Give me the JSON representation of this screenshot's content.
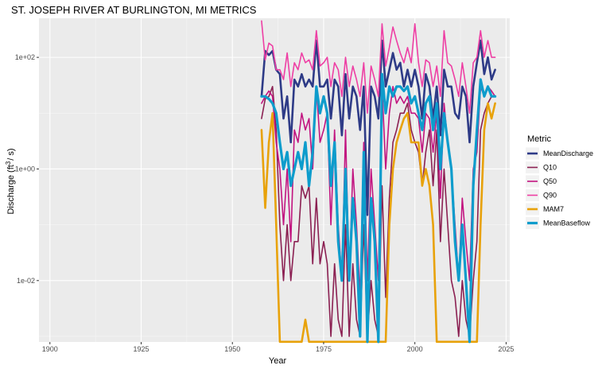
{
  "chart_data": {
    "type": "line",
    "title": "ST. JOSEPH RIVER AT BURLINGTON, MI  METRICS",
    "xlabel": "Year",
    "ylabel_main": "Discharge (ft",
    "ylabel_sup": "3",
    "ylabel_tail": "/ s)",
    "y_scale": "log10",
    "xlim": [
      1897,
      2026
    ],
    "ylim_log10": [
      -3.1,
      2.7
    ],
    "x_ticks": [
      1900,
      1925,
      1950,
      1975,
      2000,
      2025
    ],
    "x_tick_labels": [
      "1900",
      "1925",
      "1950",
      "1975",
      "2000",
      "2025"
    ],
    "y_ticks_log10": [
      2,
      0,
      -2
    ],
    "y_tick_labels": [
      "1e+02",
      "1e+00",
      "1e-02"
    ],
    "grid": true,
    "panel_background": "#ebebeb",
    "legend_position": "right",
    "legend_title": "Metric",
    "series": [
      {
        "name": "MeanDischarge",
        "color": "#2e3b87",
        "width": 2.6,
        "x": [
          1958,
          1959,
          1960,
          1961,
          1962,
          1963,
          1964,
          1965,
          1966,
          1967,
          1968,
          1969,
          1970,
          1971,
          1972,
          1973,
          1974,
          1975,
          1976,
          1977,
          1978,
          1979,
          1980,
          1981,
          1982,
          1983,
          1984,
          1985,
          1986,
          1987,
          1988,
          1989,
          1990,
          1991,
          1992,
          1993,
          1994,
          1995,
          1996,
          1997,
          1998,
          1999,
          2000,
          2001,
          2002,
          2003,
          2004,
          2005,
          2006,
          2007,
          2008,
          2009,
          2010,
          2011,
          2012,
          2013,
          2014,
          2015,
          2016,
          2017,
          2018,
          2019,
          2020,
          2021,
          2022
        ],
        "y": [
          20,
          130,
          110,
          130,
          60,
          50,
          8,
          20,
          3,
          40,
          30,
          50,
          30,
          40,
          30,
          200,
          30,
          30,
          40,
          8,
          40,
          30,
          4,
          50,
          8,
          30,
          20,
          5,
          30,
          0.15,
          30,
          20,
          8,
          200,
          30,
          60,
          120,
          60,
          80,
          30,
          60,
          30,
          60,
          30,
          8,
          50,
          30,
          8,
          30,
          4,
          60,
          30,
          30,
          10,
          8,
          30,
          20,
          3,
          30,
          80,
          200,
          50,
          100,
          40,
          60
        ]
      },
      {
        "name": "Q10",
        "color": "#8b2052",
        "width": 1.6,
        "x": [
          1958,
          1959,
          1960,
          1961,
          1962,
          1963,
          1964,
          1965,
          1966,
          1967,
          1968,
          1969,
          1970,
          1971,
          1972,
          1973,
          1974,
          1975,
          1976,
          1977,
          1978,
          1979,
          1980,
          1981,
          1982,
          1983,
          1984,
          1985,
          1986,
          1987,
          1988,
          1989,
          1990,
          1991,
          1992,
          1993,
          1994,
          1995,
          1996,
          1997,
          1998,
          1999,
          2000,
          2001,
          2002,
          2003,
          2004,
          2005,
          2006,
          2007,
          2008,
          2009,
          2010,
          2011,
          2012,
          2013,
          2014,
          2015,
          2016,
          2017,
          2018,
          2019,
          2020,
          2021,
          2022
        ],
        "y": [
          8,
          18,
          20,
          30,
          5,
          0.1,
          0.01,
          0.1,
          0.01,
          0.05,
          0.05,
          0.5,
          0.3,
          0.5,
          0.02,
          0.3,
          0.02,
          0.05,
          0.02,
          0.001,
          0.02,
          0.002,
          0.001,
          0.1,
          0.001,
          0.02,
          0.002,
          0.001,
          0.1,
          0.001,
          0.01,
          0.002,
          0.001,
          0.5,
          0.005,
          0.3,
          3,
          5,
          10,
          10,
          15,
          5,
          3,
          2,
          0.5,
          2,
          5,
          0.5,
          5,
          0.05,
          1,
          0.1,
          0.01,
          0.005,
          0.001,
          0.01,
          0.002,
          0.001,
          0.01,
          0.05,
          5,
          10,
          15,
          20,
          20
        ]
      },
      {
        "name": "Q50",
        "color": "#c21480",
        "width": 1.6,
        "x": [
          1958,
          1959,
          1960,
          1961,
          1962,
          1963,
          1964,
          1965,
          1966,
          1967,
          1968,
          1969,
          1970,
          1971,
          1972,
          1973,
          1974,
          1975,
          1976,
          1977,
          1978,
          1979,
          1980,
          1981,
          1982,
          1983,
          1984,
          1985,
          1986,
          1987,
          1988,
          1989,
          1990,
          1991,
          1992,
          1993,
          1994,
          1995,
          1996,
          1997,
          1998,
          1999,
          2000,
          2001,
          2002,
          2003,
          2004,
          2005,
          2006,
          2007,
          2008,
          2009,
          2010,
          2011,
          2012,
          2013,
          2014,
          2015,
          2016,
          2017,
          2018,
          2019,
          2020,
          2021,
          2022
        ],
        "y": [
          15,
          20,
          25,
          20,
          3,
          1,
          0.1,
          1,
          0.05,
          5,
          3,
          10,
          5,
          8,
          1,
          30,
          3,
          5,
          10,
          0.1,
          5,
          0.1,
          0.01,
          5,
          0.01,
          1,
          0.1,
          0.005,
          3,
          0.01,
          1,
          0.1,
          0.01,
          30,
          1,
          10,
          30,
          15,
          20,
          15,
          20,
          10,
          10,
          8,
          2,
          10,
          8,
          2,
          10,
          0.3,
          15,
          3,
          1,
          0.1,
          0.01,
          0.3,
          0.05,
          0.01,
          1,
          2,
          30,
          20,
          30,
          25,
          20
        ]
      },
      {
        "name": "Q90",
        "color": "#ee3fa4",
        "width": 1.6,
        "x": [
          1958,
          1959,
          1960,
          1961,
          1962,
          1963,
          1964,
          1965,
          1966,
          1967,
          1968,
          1969,
          1970,
          1971,
          1972,
          1973,
          1974,
          1975,
          1976,
          1977,
          1978,
          1979,
          1980,
          1981,
          1982,
          1983,
          1984,
          1985,
          1986,
          1987,
          1988,
          1989,
          1990,
          1991,
          1992,
          1993,
          1994,
          1995,
          1996,
          1997,
          1998,
          1999,
          2000,
          2001,
          2002,
          2003,
          2004,
          2005,
          2006,
          2007,
          2008,
          2009,
          2010,
          2011,
          2012,
          2013,
          2014,
          2015,
          2016,
          2017,
          2018,
          2019,
          2020,
          2021,
          2022
        ],
        "y": [
          450,
          90,
          180,
          160,
          60,
          60,
          40,
          120,
          30,
          80,
          60,
          120,
          80,
          90,
          60,
          300,
          70,
          80,
          100,
          30,
          80,
          60,
          20,
          100,
          30,
          70,
          40,
          20,
          80,
          10,
          70,
          40,
          20,
          400,
          70,
          150,
          350,
          200,
          120,
          80,
          150,
          80,
          400,
          80,
          30,
          90,
          80,
          30,
          70,
          20,
          300,
          80,
          70,
          40,
          20,
          80,
          30,
          10,
          80,
          100,
          300,
          100,
          200,
          100,
          100
        ]
      },
      {
        "name": "MAM7",
        "color": "#e8a20a",
        "width": 2.6,
        "x": [
          1958,
          1959,
          1960,
          1961,
          1962,
          1963,
          1964,
          1965,
          1966,
          1967,
          1968,
          1969,
          1970,
          1971,
          1972,
          1973,
          1974,
          1975,
          1976,
          1977,
          1978,
          1979,
          1980,
          1981,
          1982,
          1983,
          1984,
          1985,
          1986,
          1987,
          1988,
          1989,
          1990,
          1991,
          1992,
          1993,
          1994,
          1995,
          1996,
          1997,
          1998,
          1999,
          2000,
          2001,
          2002,
          2003,
          2004,
          2005,
          2006,
          2007,
          2008,
          2009,
          2010,
          2011,
          2012,
          2013,
          2014,
          2015,
          2016,
          2017,
          2018,
          2019,
          2020,
          2021,
          2022
        ],
        "y": [
          5,
          0.2,
          3,
          10,
          0.1,
          0.0008,
          0.0008,
          0.0008,
          0.0008,
          0.0008,
          0.0008,
          0.0008,
          0.002,
          0.0008,
          0.0008,
          0.0008,
          0.0008,
          0.0008,
          0.0008,
          0.0008,
          0.0008,
          0.0008,
          0.0008,
          0.0008,
          0.0008,
          0.0008,
          0.0008,
          0.0008,
          0.0008,
          0.0008,
          0.0008,
          0.0008,
          0.0008,
          0.0008,
          0.0008,
          0.1,
          1,
          3,
          5,
          8,
          10,
          3,
          3,
          3,
          0.5,
          1,
          0.5,
          0.1,
          0.0008,
          0.0008,
          0.0008,
          0.0008,
          0.0008,
          0.0008,
          0.0008,
          0.0008,
          0.0008,
          0.0008,
          0.0008,
          0.0008,
          0.1,
          5,
          15,
          8,
          15
        ]
      },
      {
        "name": "MeanBaseflow",
        "color": "#0d9ccc",
        "width": 3.2,
        "x": [
          1958,
          1959,
          1960,
          1961,
          1962,
          1963,
          1964,
          1965,
          1966,
          1967,
          1968,
          1969,
          1970,
          1971,
          1972,
          1973,
          1974,
          1975,
          1976,
          1977,
          1978,
          1979,
          1980,
          1981,
          1982,
          1983,
          1984,
          1985,
          1986,
          1987,
          1988,
          1989,
          1990,
          1991,
          1992,
          1993,
          1994,
          1995,
          1996,
          1997,
          1998,
          1999,
          2000,
          2001,
          2002,
          2003,
          2004,
          2005,
          2006,
          2007,
          2008,
          2009,
          2010,
          2011,
          2012,
          2013,
          2014,
          2015,
          2016,
          2017,
          2018,
          2019,
          2020,
          2021,
          2022
        ],
        "y": [
          20,
          20,
          18,
          15,
          10,
          3,
          1,
          2,
          0.5,
          1,
          2,
          1,
          3,
          0.5,
          2,
          30,
          10,
          20,
          10,
          0.5,
          3,
          0.05,
          0.01,
          1,
          0.01,
          0.3,
          0.05,
          0.001,
          2,
          0.0008,
          0.3,
          0.05,
          0.0008,
          50,
          10,
          30,
          20,
          30,
          30,
          25,
          30,
          15,
          20,
          10,
          5,
          15,
          20,
          5,
          15,
          1,
          10,
          3,
          1,
          0.05,
          0.01,
          0.1,
          0.01,
          0.0008,
          0.5,
          5,
          40,
          20,
          30,
          20,
          20
        ]
      }
    ]
  }
}
